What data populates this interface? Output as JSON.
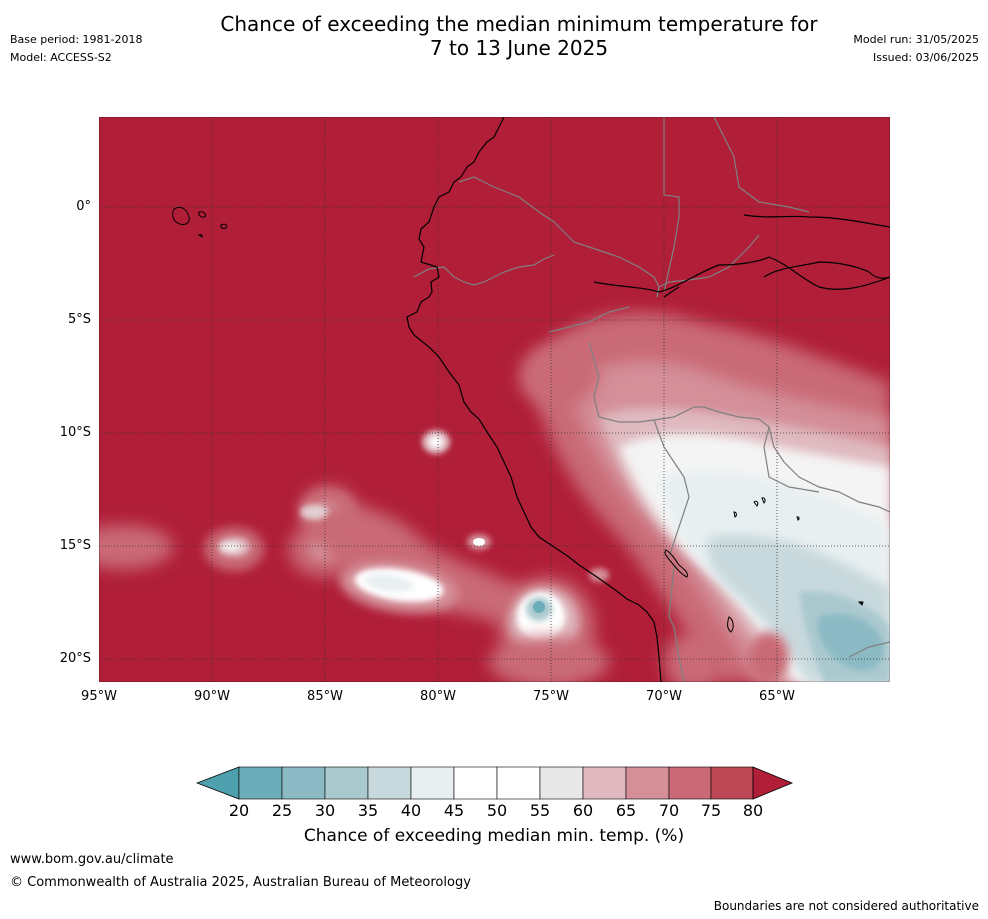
{
  "header": {
    "base_period": "Base period: 1981-2018",
    "model": "Model: ACCESS-S2",
    "title_line1": "Chance of exceeding the median minimum temperature for",
    "title_line2": "7 to 13 June 2025",
    "model_run": "Model run: 31/05/2025",
    "issued": "Issued: 03/06/2025"
  },
  "map": {
    "lat_labels": [
      "0°",
      "5°S",
      "10°S",
      "15°S",
      "20°S"
    ],
    "lon_labels": [
      "95°W",
      "90°W",
      "85°W",
      "80°W",
      "75°W",
      "70°W",
      "65°W"
    ],
    "background_color": "#b01e38",
    "coastline_color": "#000000",
    "border_color": "#808080"
  },
  "colorbar": {
    "label": "Chance of exceeding median min. temp. (%)",
    "ticks": [
      "20",
      "25",
      "30",
      "35",
      "40",
      "45",
      "50",
      "55",
      "60",
      "65",
      "70",
      "75",
      "80"
    ],
    "colors": [
      "#4fa0ae",
      "#6cadba",
      "#8cbac4",
      "#aac9cf",
      "#c8d9dd",
      "#e8eff1",
      "#ffffff",
      "#ffffff",
      "#e8e8e8",
      "#dfb9bf",
      "#d48f99",
      "#c96a76",
      "#bd4856",
      "#b01e38"
    ]
  },
  "footer": {
    "website": "www.bom.gov.au/climate",
    "copyright": "© Commonwealth of Australia 2025, Australian Bureau of Meteorology",
    "disclaimer": "Boundaries are not considered authoritative"
  }
}
